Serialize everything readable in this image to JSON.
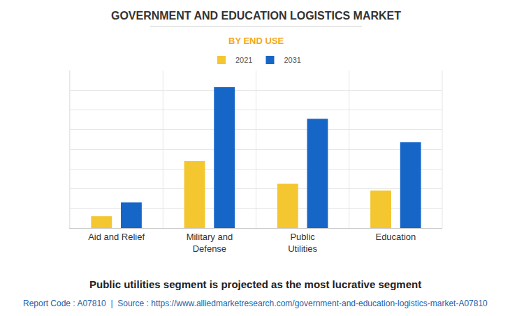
{
  "chart_data": {
    "type": "bar",
    "title": "GOVERNMENT AND EDUCATION LOGISTICS MARKET",
    "subtitle": "BY END USE",
    "categories": [
      "Aid and Relief",
      "Military and Defense",
      "Public Utilities",
      "Education"
    ],
    "series": [
      {
        "name": "2021",
        "color": "#f4c62f",
        "values": [
          0.6,
          3.4,
          2.25,
          1.9
        ]
      },
      {
        "name": "2031",
        "color": "#1666c8",
        "values": [
          1.3,
          7.15,
          5.55,
          4.35
        ]
      }
    ],
    "ylim": [
      0,
      8
    ],
    "yticks": [
      0,
      1,
      2,
      3,
      4,
      5,
      6,
      7,
      8
    ],
    "grid": true,
    "legend": "top",
    "tick_labels": "x",
    "annotations": [
      "Public utilities segment is projected as the most lucrative segment",
      "Report Code : A07810  |  Source : https://www.alliedmarketresearch.com/government-and-education-logistics-market-A07810"
    ]
  }
}
